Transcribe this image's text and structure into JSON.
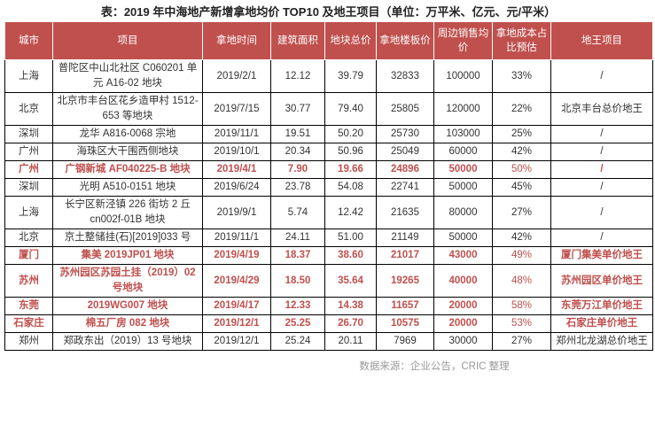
{
  "title": "表：2019 年中海地产新增拿地均价 TOP10 及地王项目（单位：万平米、亿元、元/平米）",
  "header": [
    "城市",
    "项目",
    "拿地时间",
    "建筑面积",
    "地块总价",
    "拿地楼板价",
    "周边销售均价",
    "拿地成本占比预估",
    "地王项目"
  ],
  "rows": [
    {
      "h": false,
      "c": [
        "上海",
        "普陀区中山北社区 C060201 单元 A16-02 地块",
        "2019/2/1",
        "12.12",
        "39.79",
        "32833",
        "100000",
        "33%",
        "/"
      ]
    },
    {
      "h": false,
      "c": [
        "北京",
        "北京市丰台区花乡造甲村 1512-653 等地块",
        "2019/7/15",
        "30.77",
        "79.40",
        "25805",
        "120000",
        "22%",
        "北京丰台总价地王"
      ]
    },
    {
      "h": false,
      "c": [
        "深圳",
        "龙华 A816-0068 宗地",
        "2019/11/1",
        "19.51",
        "50.20",
        "25730",
        "103000",
        "25%",
        "/"
      ]
    },
    {
      "h": false,
      "c": [
        "广州",
        "海珠区大干围西侧地块",
        "2019/10/1",
        "20.34",
        "50.96",
        "25049",
        "60000",
        "42%",
        "/"
      ]
    },
    {
      "h": true,
      "c": [
        "广州",
        "广钢新城 AF040225-B 地块",
        "2019/4/1",
        "7.90",
        "19.66",
        "24896",
        "50000",
        "50%",
        "/"
      ]
    },
    {
      "h": false,
      "c": [
        "深圳",
        "光明 A510-0151 地块",
        "2019/6/24",
        "23.78",
        "54.08",
        "22741",
        "50000",
        "45%",
        "/"
      ]
    },
    {
      "h": false,
      "c": [
        "上海",
        "长宁区新泾镇 226 街坊 2 丘 cn002f-01B 地块",
        "2019/9/1",
        "5.74",
        "12.42",
        "21635",
        "80000",
        "27%",
        "/"
      ]
    },
    {
      "h": false,
      "c": [
        "北京",
        "京土整储挂(石)[2019]033 号",
        "2019/11/1",
        "24.11",
        "51.00",
        "21149",
        "50000",
        "42%",
        "/"
      ]
    },
    {
      "h": true,
      "c": [
        "厦门",
        "集美 2019JP01 地块",
        "2019/4/19",
        "18.37",
        "38.60",
        "21017",
        "43000",
        "49%",
        "厦门集美单价地王"
      ]
    },
    {
      "h": true,
      "c": [
        "苏州",
        "苏州园区苏园土挂（2019）02 号地块",
        "2019/4/29",
        "18.50",
        "35.64",
        "19265",
        "40000",
        "48%",
        "苏州园区单价地王"
      ]
    },
    {
      "h": true,
      "c": [
        "东莞",
        "2019WG007 地块",
        "2019/4/17",
        "12.33",
        "14.38",
        "11657",
        "20000",
        "58%",
        "东莞万江单价地王"
      ]
    },
    {
      "h": true,
      "c": [
        "石家庄",
        "棉五厂房 082 地块",
        "2019/12/1",
        "25.25",
        "26.70",
        "10575",
        "20000",
        "53%",
        "石家庄单价地王"
      ]
    },
    {
      "h": false,
      "c": [
        "郑州",
        "郑政东出（2019）13 号地块",
        "2019/12/1",
        "25.24",
        "20.11",
        "7969",
        "30000",
        "27%",
        "郑州北龙湖总价地王"
      ]
    }
  ],
  "source": "数据来源：企业公告，CRIC 整理",
  "colors": {
    "header_bg": "#c0504d",
    "highlight_text": "#c0504d"
  }
}
